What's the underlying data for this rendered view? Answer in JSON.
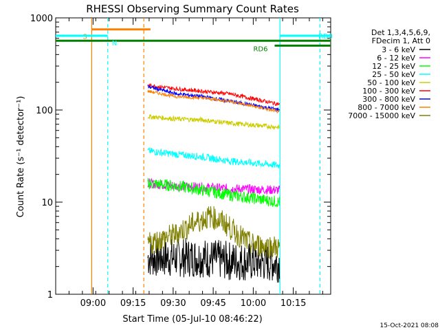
{
  "chart_data": {
    "type": "line",
    "title": "RHESSI Observing Summary Count Rates",
    "xlabel": "Start Time (05-Jul-10 08:46:22)",
    "ylabel": "Count Rate (s⁻¹ detector⁻¹)",
    "yscale": "log",
    "ylim": [
      1,
      1000
    ],
    "xlim_minutes_after_0846": [
      0,
      103
    ],
    "x_tick_labels": [
      "09:00",
      "09:15",
      "09:30",
      "09:45",
      "10:00",
      "10:15"
    ],
    "x_tick_minutes_after_0846": [
      14,
      29,
      44,
      59,
      74,
      89
    ],
    "y_tick_labels": [
      "1",
      "10",
      "100",
      "1000"
    ],
    "y_tick_values": [
      1,
      10,
      100,
      1000
    ],
    "legend_header": [
      "Det 1,3,4,5,6,9,",
      "FDecim 1, Att 0"
    ],
    "legend": [
      {
        "label": "3 - 6 keV",
        "color": "#000000"
      },
      {
        "label": "6 - 12 keV",
        "color": "#ff00ff"
      },
      {
        "label": "12 - 25 keV",
        "color": "#00ff00"
      },
      {
        "label": "25 - 50 keV",
        "color": "#00ffff"
      },
      {
        "label": "50 - 100 keV",
        "color": "#cccc00"
      },
      {
        "label": "100 - 300 keV",
        "color": "#ff0000"
      },
      {
        "label": "300 - 800 keV",
        "color": "#0000ff"
      },
      {
        "label": "800 - 7000 keV",
        "color": "#ff8000"
      },
      {
        "label": "7000 - 15000 keV",
        "color": "#808000"
      }
    ],
    "series": [
      {
        "name": "3 - 6 keV",
        "color": "#000000",
        "x": [
          34.5,
          45,
          55,
          65,
          84
        ],
        "y": [
          2.5,
          2.5,
          2.5,
          2.3,
          2.2
        ]
      },
      {
        "name": "6 - 12 keV",
        "color": "#ff00ff",
        "x": [
          34.5,
          45,
          55,
          65,
          84
        ],
        "y": [
          16,
          15,
          14.5,
          14,
          13.5
        ]
      },
      {
        "name": "12 - 25 keV",
        "color": "#00ff00",
        "x": [
          34.5,
          45,
          55,
          65,
          84
        ],
        "y": [
          16,
          15,
          13.5,
          12,
          10
        ]
      },
      {
        "name": "25 - 50 keV",
        "color": "#00ffff",
        "x": [
          34.5,
          45,
          55,
          65,
          84
        ],
        "y": [
          36,
          33,
          31,
          28,
          25
        ]
      },
      {
        "name": "50 - 100 keV",
        "color": "#cccc00",
        "x": [
          34.5,
          45,
          55,
          65,
          84
        ],
        "y": [
          85,
          80,
          78,
          72,
          65
        ]
      },
      {
        "name": "100 - 300 keV",
        "color": "#ff0000",
        "x": [
          34.5,
          45,
          55,
          65,
          84
        ],
        "y": [
          185,
          170,
          160,
          150,
          115
        ]
      },
      {
        "name": "300 - 800 keV",
        "color": "#0000ff",
        "x": [
          34.5,
          45,
          55,
          65,
          84
        ],
        "y": [
          180,
          150,
          140,
          125,
          100
        ]
      },
      {
        "name": "800 - 7000 keV",
        "color": "#ff8000",
        "x": [
          34.5,
          45,
          55,
          65,
          84
        ],
        "y": [
          160,
          140,
          135,
          125,
          95
        ]
      },
      {
        "name": "7000 - 15000 keV",
        "color": "#808000",
        "x": [
          34.5,
          40,
          45,
          52,
          58,
          63,
          68,
          73,
          84
        ],
        "y": [
          3.5,
          4,
          4.5,
          6,
          7,
          6,
          4.5,
          3.5,
          3.2
        ]
      }
    ],
    "markers": [
      {
        "label": "S",
        "color": "#ff8000",
        "x": [
          13.5,
          35.5
        ],
        "y": 750
      },
      {
        "label": "N",
        "color": "#00ffff",
        "x": [
          0,
          19.5
        ],
        "y": 640
      },
      {
        "label": "RD0",
        "color": "#00ffff",
        "x": [
          84,
          103
        ],
        "y": 640
      },
      {
        "label": "RD6",
        "color": "#008000",
        "x": [
          82,
          103
        ],
        "y": 500
      }
    ],
    "long_bar": {
      "color": "#008000",
      "x": [
        0,
        103
      ],
      "y": 565
    },
    "vertical_lines": [
      {
        "x": 13.5,
        "color": "#ff8000",
        "style": "solid"
      },
      {
        "x": 19.5,
        "color": "#00ffff",
        "style": "dashed"
      },
      {
        "x": 33,
        "color": "#ff8000",
        "style": "dashed"
      },
      {
        "x": 84,
        "color": "#00ffff",
        "style": "solid"
      },
      {
        "x": 99,
        "color": "#00ffff",
        "style": "dashed"
      }
    ],
    "grid": false,
    "legend_position": "right"
  },
  "footer": {
    "date": "15-Oct-2021 08:08"
  }
}
